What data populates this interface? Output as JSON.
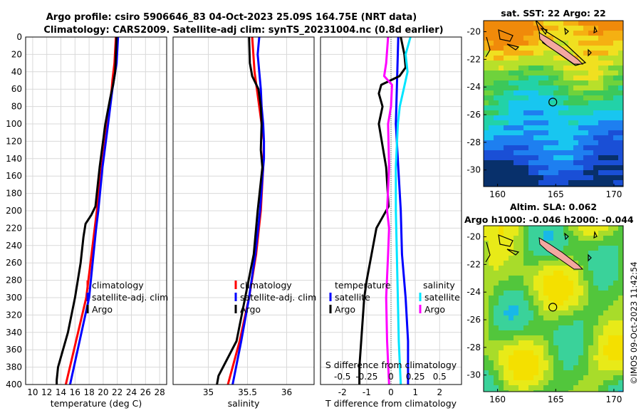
{
  "figure_title": {
    "line1": "Argo profile: csiro 5906646_83 04-Oct-2023 25.09S 164.75E (NRT data)",
    "line2": "Climatology: CARS2009. Satellite-adj clim: synTS_20231004.nc (0.8d earlier)"
  },
  "colors": {
    "climatology": "#ff0000",
    "satellite_clim": "#0000ff",
    "argo": "#000000",
    "salinity_sat": "#00e5ff",
    "salinity_argo": "#ff00ff",
    "grid": "#d9d9d9"
  },
  "chart_data": [
    {
      "type": "line",
      "id": "temperature",
      "xlabel": "temperature (deg C)",
      "ylabel": "",
      "xlim": [
        9,
        29
      ],
      "ylim": [
        400,
        0
      ],
      "x_ticks": [
        10,
        12,
        14,
        16,
        18,
        20,
        22,
        24,
        26,
        28
      ],
      "y_ticks": [
        0,
        20,
        40,
        60,
        80,
        100,
        120,
        140,
        160,
        180,
        200,
        220,
        240,
        260,
        280,
        300,
        320,
        340,
        360,
        380,
        400
      ],
      "legend": [
        "climatology",
        "satellite-adj. clim",
        "Argo"
      ],
      "legend_position": "right",
      "series": [
        {
          "name": "climatology",
          "color": "#ff0000",
          "depth": [
            0,
            30,
            50,
            60,
            100,
            150,
            200,
            220,
            300,
            400
          ],
          "values": [
            21.8,
            21.6,
            21.3,
            21.2,
            20.6,
            19.8,
            19.1,
            18.8,
            17.6,
            14.7
          ]
        },
        {
          "name": "satellite-adj. clim",
          "color": "#0000ff",
          "depth": [
            0,
            30,
            50,
            60,
            100,
            150,
            200,
            220,
            300,
            400
          ],
          "values": [
            22.1,
            21.9,
            21.5,
            21.3,
            20.7,
            19.9,
            19.3,
            19.0,
            18.0,
            15.3
          ]
        },
        {
          "name": "Argo",
          "color": "#000000",
          "depth": [
            0,
            20,
            40,
            55,
            70,
            100,
            150,
            195,
            205,
            215,
            230,
            260,
            300,
            340,
            380,
            395,
            400
          ],
          "values": [
            21.9,
            21.8,
            21.7,
            21.4,
            21.0,
            20.3,
            19.5,
            18.9,
            18.3,
            17.5,
            17.2,
            16.8,
            16.0,
            15.0,
            13.6,
            13.4,
            13.4
          ]
        }
      ]
    },
    {
      "type": "line",
      "id": "salinity",
      "xlabel": "salinity",
      "ylabel": "",
      "xlim": [
        34.55,
        36.35
      ],
      "ylim": [
        400,
        0
      ],
      "x_ticks": [
        35,
        35.5,
        36
      ],
      "legend": [
        "climatology",
        "satellite-adj. clim",
        "Argo"
      ],
      "legend_position": "right",
      "series": [
        {
          "name": "climatology",
          "color": "#ff0000",
          "depth": [
            0,
            40,
            60,
            100,
            120,
            150,
            200,
            250,
            300,
            350,
            400
          ],
          "values": [
            35.56,
            35.59,
            35.62,
            35.68,
            35.71,
            35.7,
            35.67,
            35.61,
            35.52,
            35.4,
            35.25
          ]
        },
        {
          "name": "satellite-adj. clim",
          "color": "#0000ff",
          "depth": [
            0,
            20,
            40,
            60,
            80,
            100,
            120,
            140,
            150,
            200,
            250,
            300,
            350,
            400
          ],
          "values": [
            35.65,
            35.63,
            35.65,
            35.67,
            35.68,
            35.7,
            35.71,
            35.71,
            35.7,
            35.66,
            35.6,
            35.52,
            35.42,
            35.31
          ]
        },
        {
          "name": "Argo",
          "color": "#000000",
          "depth": [
            0,
            30,
            45,
            60,
            80,
            100,
            130,
            150,
            200,
            250,
            300,
            350,
            390,
            400
          ],
          "values": [
            35.52,
            35.53,
            35.56,
            35.64,
            35.67,
            35.68,
            35.67,
            35.69,
            35.63,
            35.58,
            35.47,
            35.36,
            35.13,
            35.11
          ]
        }
      ]
    },
    {
      "type": "line",
      "id": "difference",
      "xlabel": "T difference from climatology",
      "xlabel_top": "S difference from climatology",
      "ylabel": "",
      "xlim": [
        -2.9,
        2.9
      ],
      "ylim": [
        400,
        0
      ],
      "x_ticks": [
        -2,
        -1,
        0,
        1,
        2
      ],
      "s_ticks": [
        -0.5,
        -0.25,
        0,
        0.25,
        0.5
      ],
      "s_tick_labels": [
        "-0.5",
        "-0.25",
        "0",
        "0.25",
        "0.5"
      ],
      "legend_temperature_title": "temperature",
      "legend_salinity_title": "salinity",
      "legend_temperature": [
        "satellite",
        "Argo"
      ],
      "legend_salinity": [
        "satellite",
        "Argo"
      ],
      "series": [
        {
          "name": "T satellite",
          "color": "#0000ff",
          "depth": [
            0,
            50,
            100,
            150,
            200,
            250,
            300,
            350,
            400
          ],
          "values": [
            0.3,
            0.25,
            0.2,
            0.3,
            0.4,
            0.45,
            0.6,
            0.7,
            0.7
          ]
        },
        {
          "name": "T Argo",
          "color": "#000000",
          "depth": [
            0,
            20,
            35,
            45,
            55,
            65,
            80,
            100,
            150,
            195,
            210,
            220,
            250,
            280,
            300,
            340,
            380,
            400
          ],
          "values": [
            0.4,
            0.55,
            0.6,
            0.35,
            -0.4,
            -0.5,
            -0.35,
            -0.5,
            -0.2,
            -0.1,
            -0.4,
            -0.6,
            -0.8,
            -1.0,
            -1.1,
            -1.2,
            -1.3,
            -1.3
          ]
        },
        {
          "name": "S satellite",
          "color": "#00e5ff",
          "depth": [
            0,
            20,
            40,
            60,
            80,
            100,
            150,
            200,
            250,
            300,
            350,
            400
          ],
          "values": [
            0.2,
            0.15,
            0.17,
            0.13,
            0.09,
            0.07,
            0.05,
            0.05,
            0.06,
            0.07,
            0.08,
            0.1
          ]
        },
        {
          "name": "S Argo",
          "color": "#ff00ff",
          "depth": [
            0,
            30,
            45,
            55,
            80,
            100,
            150,
            200,
            220,
            250,
            300,
            350,
            400
          ],
          "values": [
            -0.03,
            -0.05,
            -0.07,
            0.01,
            0.0,
            -0.03,
            -0.02,
            -0.04,
            -0.02,
            -0.03,
            -0.05,
            -0.04,
            -0.02
          ]
        }
      ]
    },
    {
      "type": "heatmap",
      "id": "sst_map",
      "title": "sat. SST: 22 Argo: 22",
      "x_ticks": [
        160,
        165,
        170
      ],
      "y_ticks": [
        -20,
        -22,
        -24,
        -26,
        -28,
        -30
      ],
      "xlim": [
        158.8,
        170.8
      ],
      "ylim": [
        -31.2,
        -19.2
      ],
      "argo_position": [
        164.75,
        -25.09
      ]
    },
    {
      "type": "heatmap",
      "id": "sla_map",
      "title_line1": "Altim. SLA: 0.062",
      "title_line2": "Argo h1000: -0.046 h2000: -0.044",
      "x_ticks": [
        160,
        165,
        170
      ],
      "y_ticks": [
        -20,
        -22,
        -24,
        -26,
        -28,
        -30
      ],
      "xlim": [
        158.8,
        170.8
      ],
      "ylim": [
        -31.2,
        -19.2
      ],
      "argo_position": [
        164.75,
        -25.09
      ]
    }
  ],
  "legend_labels": {
    "climatology": "climatology",
    "satellite_clim": "satellite-adj. clim",
    "argo": "Argo",
    "satellite": "satellite"
  },
  "stamp": "©IMOS 09-Oct-2023 11:42:54"
}
